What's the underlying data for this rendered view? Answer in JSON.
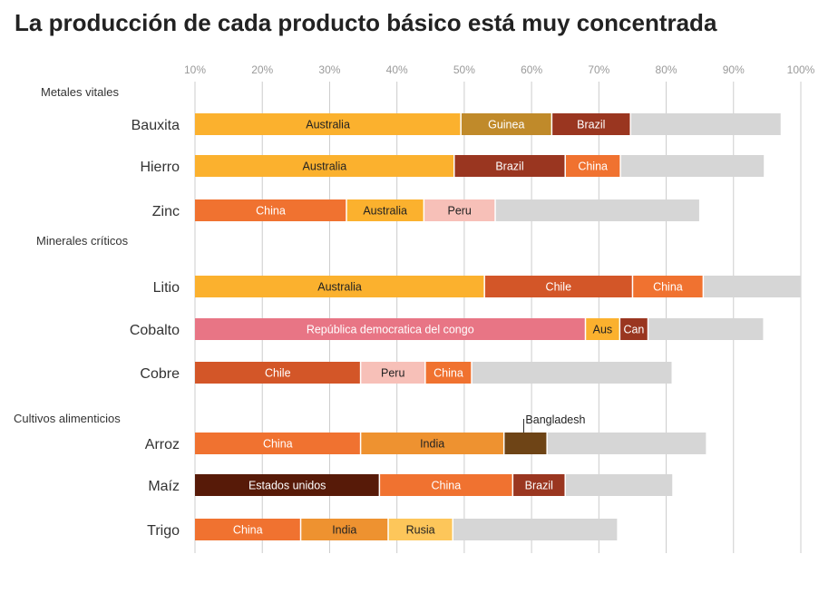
{
  "chart_data": {
    "type": "bar",
    "orientation": "horizontal",
    "stacked": true,
    "title": "La producción de cada producto básico está muy concentrada",
    "x_axis": {
      "min": 10,
      "max": 100,
      "unit": "%",
      "ticks": [
        "10%",
        "20%",
        "30%",
        "40%",
        "50%",
        "60%",
        "70%",
        "80%",
        "90%",
        "100%"
      ],
      "tick_values": [
        10,
        20,
        30,
        40,
        50,
        60,
        70,
        80,
        90,
        100
      ],
      "position": "top",
      "grid": true
    },
    "colors": {
      "rest": "#d6d6d6",
      "grid": "#cccccc",
      "Australia": "#fbb12e",
      "Guinea": "#c08a2a",
      "Brazil": "#9a3620",
      "China": "#f07230",
      "Peru": "#f7c0b8",
      "Chile": "#d35628",
      "República democratica del congo": "#e87585",
      "Aus": "#fbb12e",
      "Can": "#9a3620",
      "India": "#ee9230",
      "Bangladesh": "#6e4416",
      "Estados unidos": "#571a08",
      "Rusia": "#fdc65a"
    },
    "light_text_labels": [
      "Guinea",
      "Brazil",
      "China",
      "Chile",
      "República democratica del congo",
      "Can",
      "Estados unidos"
    ],
    "groups": [
      {
        "label": "Metales vitales",
        "items": [
          {
            "name": "Bauxita",
            "segments": [
              {
                "label": "Australia",
                "value": 49.5
              },
              {
                "label": "Guinea",
                "value": 63.0
              },
              {
                "label": "Brazil",
                "value": 74.7
              }
            ],
            "total": 97.0
          },
          {
            "name": "Hierro",
            "segments": [
              {
                "label": "Australia",
                "value": 48.5
              },
              {
                "label": "Brazil",
                "value": 65.0
              },
              {
                "label": "China",
                "value": 73.2
              }
            ],
            "total": 94.5
          },
          {
            "name": "Zinc",
            "segments": [
              {
                "label": "China",
                "value": 32.5
              },
              {
                "label": "Australia",
                "value": 44.0
              },
              {
                "label": "Peru",
                "value": 54.6
              }
            ],
            "total": 84.9
          }
        ]
      },
      {
        "label": "Minerales críticos",
        "items": [
          {
            "name": "Litio",
            "segments": [
              {
                "label": "Australia",
                "value": 53.0
              },
              {
                "label": "Chile",
                "value": 75.0
              },
              {
                "label": "China",
                "value": 85.5
              }
            ],
            "total": 100.0
          },
          {
            "name": "Cobalto",
            "segments": [
              {
                "label": "República democratica del congo",
                "value": 68.0
              },
              {
                "label": "Aus",
                "value": 73.1
              },
              {
                "label": "Can",
                "value": 77.3
              }
            ],
            "total": 94.4
          },
          {
            "name": "Cobre",
            "segments": [
              {
                "label": "Chile",
                "value": 34.6
              },
              {
                "label": "Peru",
                "value": 44.2
              },
              {
                "label": "China",
                "value": 51.1
              }
            ],
            "total": 80.8
          }
        ]
      },
      {
        "label": "Cultivos alimenticios",
        "items": [
          {
            "name": "Arroz",
            "segments": [
              {
                "label": "China",
                "value": 34.6
              },
              {
                "label": "India",
                "value": 55.9
              },
              {
                "label": "Bangladesh",
                "value": 62.3,
                "callout": "Bangladesh"
              }
            ],
            "total": 85.9
          },
          {
            "name": "Maíz",
            "segments": [
              {
                "label": "Estados unidos",
                "value": 37.4
              },
              {
                "label": "China",
                "value": 57.2
              },
              {
                "label": "Brazil",
                "value": 65.0
              }
            ],
            "total": 80.9
          },
          {
            "name": "Trigo",
            "segments": [
              {
                "label": "China",
                "value": 25.7
              },
              {
                "label": "India",
                "value": 38.7
              },
              {
                "label": "Rusia",
                "value": 48.3
              }
            ],
            "total": 72.7
          }
        ]
      }
    ]
  }
}
